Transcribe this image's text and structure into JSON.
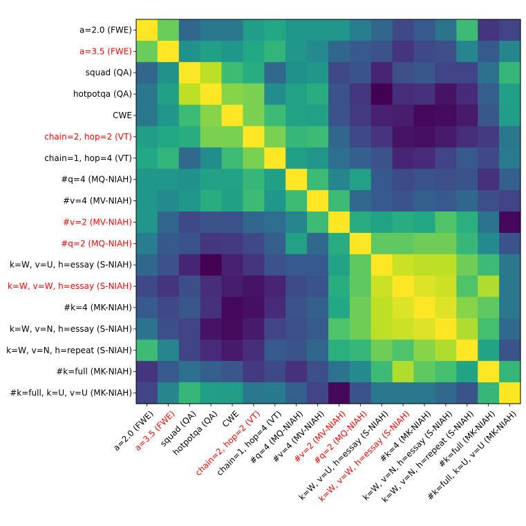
{
  "chart_data": {
    "type": "heatmap",
    "title": "",
    "xlabel": "",
    "ylabel": "",
    "colormap": "viridis",
    "value_range": [
      0,
      1
    ],
    "colorbar": false,
    "labels": [
      "a=2.0 (FWE)",
      "a=3.5 (FWE)",
      "squad (QA)",
      "hotpotqa (QA)",
      "CWE",
      "chain=2, hop=2 (VT)",
      "chain=1, hop=4 (VT)",
      "#q=4 (MQ-NIAH)",
      "#v=4 (MV-NIAH)",
      "#v=2 (MV-NIAH)",
      "#q=2 (MQ-NIAH)",
      "k=W, v=U, h=essay (S-NIAH)",
      "k=W, v=W, h=essay (S-NIAH)",
      "#k=4 (MK-NIAH)",
      "k=W, v=N, h=essay (S-NIAH)",
      "k=W, v=N, h=repeat (S-NIAH)",
      "#k=full (MK-NIAH)",
      "#k=full, k=U, v=U (MK-NIAH)"
    ],
    "highlighted_labels": [
      "a=3.5 (FWE)",
      "chain=2, hop=2 (VT)",
      "#v=2 (MV-NIAH)",
      "#q=2 (MQ-NIAH)",
      "k=W, v=W, h=essay (S-NIAH)"
    ],
    "label_color_default": "#000000",
    "label_color_highlight": "#ff0000",
    "matrix": [
      [
        1.0,
        0.77,
        0.33,
        0.4,
        0.4,
        0.55,
        0.6,
        0.52,
        0.52,
        0.52,
        0.42,
        0.33,
        0.22,
        0.28,
        0.38,
        0.68,
        0.15,
        0.2
      ],
      [
        0.77,
        1.0,
        0.5,
        0.56,
        0.52,
        0.6,
        0.65,
        0.52,
        0.47,
        0.33,
        0.28,
        0.25,
        0.15,
        0.22,
        0.24,
        0.45,
        0.28,
        0.45
      ],
      [
        0.33,
        0.5,
        1.0,
        0.9,
        0.68,
        0.62,
        0.34,
        0.5,
        0.52,
        0.22,
        0.26,
        0.1,
        0.24,
        0.27,
        0.2,
        0.2,
        0.37,
        0.66
      ],
      [
        0.4,
        0.56,
        0.9,
        1.0,
        0.82,
        0.8,
        0.48,
        0.57,
        0.62,
        0.26,
        0.16,
        0.0,
        0.13,
        0.14,
        0.05,
        0.12,
        0.3,
        0.56
      ],
      [
        0.4,
        0.52,
        0.68,
        0.82,
        1.0,
        0.8,
        0.68,
        0.58,
        0.57,
        0.25,
        0.17,
        0.09,
        0.08,
        0.02,
        0.03,
        0.07,
        0.27,
        0.55
      ],
      [
        0.55,
        0.6,
        0.62,
        0.8,
        0.8,
        1.0,
        0.8,
        0.66,
        0.68,
        0.33,
        0.22,
        0.15,
        0.05,
        0.04,
        0.07,
        0.13,
        0.17,
        0.4
      ],
      [
        0.6,
        0.65,
        0.34,
        0.48,
        0.68,
        0.8,
        1.0,
        0.56,
        0.52,
        0.36,
        0.3,
        0.25,
        0.1,
        0.12,
        0.2,
        0.28,
        0.22,
        0.41
      ],
      [
        0.52,
        0.52,
        0.5,
        0.57,
        0.58,
        0.66,
        0.56,
        1.0,
        0.68,
        0.45,
        0.57,
        0.28,
        0.23,
        0.25,
        0.24,
        0.26,
        0.14,
        0.3
      ],
      [
        0.52,
        0.47,
        0.52,
        0.62,
        0.57,
        0.68,
        0.52,
        0.68,
        1.0,
        0.68,
        0.34,
        0.28,
        0.26,
        0.3,
        0.28,
        0.33,
        0.24,
        0.2
      ],
      [
        0.52,
        0.33,
        0.22,
        0.26,
        0.25,
        0.33,
        0.36,
        0.45,
        0.68,
        1.0,
        0.62,
        0.58,
        0.62,
        0.6,
        0.72,
        0.63,
        0.38,
        0.02
      ],
      [
        0.42,
        0.28,
        0.26,
        0.16,
        0.17,
        0.22,
        0.3,
        0.57,
        0.34,
        0.62,
        1.0,
        0.75,
        0.75,
        0.78,
        0.78,
        0.66,
        0.47,
        0.26
      ],
      [
        0.33,
        0.25,
        0.1,
        0.0,
        0.09,
        0.15,
        0.25,
        0.28,
        0.28,
        0.58,
        0.75,
        1.0,
        0.92,
        0.9,
        0.9,
        0.78,
        0.68,
        0.4
      ],
      [
        0.22,
        0.15,
        0.24,
        0.13,
        0.08,
        0.05,
        0.1,
        0.23,
        0.26,
        0.62,
        0.75,
        0.92,
        1.0,
        0.95,
        0.92,
        0.72,
        0.88,
        0.4
      ],
      [
        0.28,
        0.22,
        0.27,
        0.14,
        0.02,
        0.04,
        0.12,
        0.25,
        0.3,
        0.6,
        0.78,
        0.9,
        0.95,
        1.0,
        0.95,
        0.82,
        0.75,
        0.4
      ],
      [
        0.38,
        0.24,
        0.2,
        0.05,
        0.03,
        0.07,
        0.2,
        0.24,
        0.28,
        0.72,
        0.78,
        0.9,
        0.92,
        0.95,
        1.0,
        0.88,
        0.7,
        0.34
      ],
      [
        0.68,
        0.45,
        0.2,
        0.12,
        0.07,
        0.13,
        0.28,
        0.26,
        0.33,
        0.63,
        0.66,
        0.78,
        0.72,
        0.82,
        0.88,
        1.0,
        0.58,
        0.26
      ],
      [
        0.15,
        0.28,
        0.37,
        0.3,
        0.27,
        0.17,
        0.22,
        0.14,
        0.24,
        0.38,
        0.47,
        0.68,
        0.88,
        0.75,
        0.7,
        0.58,
        1.0,
        0.66
      ],
      [
        0.2,
        0.45,
        0.66,
        0.56,
        0.55,
        0.4,
        0.41,
        0.3,
        0.2,
        0.02,
        0.26,
        0.4,
        0.4,
        0.4,
        0.34,
        0.26,
        0.66,
        1.0
      ]
    ]
  }
}
